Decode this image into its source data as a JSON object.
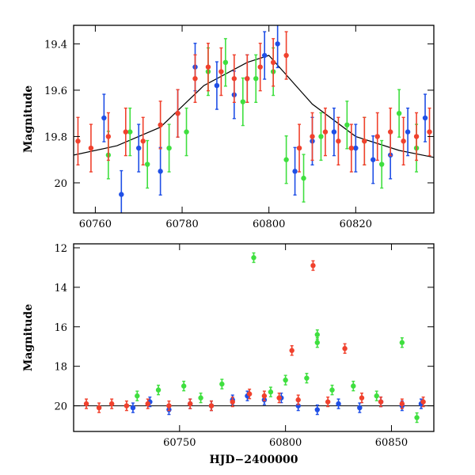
{
  "chart_data": [
    {
      "type": "scatter",
      "panel": "top",
      "title": "",
      "xlabel": "",
      "ylabel": "Magnitude",
      "xlim": [
        60755,
        60838
      ],
      "ylim": [
        20.13,
        19.32
      ],
      "y_inverted": true,
      "xticks": [
        60760,
        60780,
        60800,
        60820
      ],
      "yticks": [
        19.4,
        19.6,
        19.8,
        20
      ],
      "ytick_labels": [
        "19.4",
        "19.6",
        "19.8",
        "20"
      ],
      "grid": false,
      "series": [
        {
          "color": "#1f4fe6",
          "points": [
            [
              60762,
              19.72
            ],
            [
              60766,
              20.05
            ],
            [
              60770,
              19.85
            ],
            [
              60775,
              19.95
            ],
            [
              60779,
              19.7
            ],
            [
              60783,
              19.5
            ],
            [
              60788,
              19.58
            ],
            [
              60792,
              19.62
            ],
            [
              60795,
              19.55
            ],
            [
              60799,
              19.45
            ],
            [
              60802,
              19.4
            ],
            [
              60806,
              19.95
            ],
            [
              60810,
              19.82
            ],
            [
              60815,
              19.78
            ],
            [
              60820,
              19.85
            ],
            [
              60824,
              19.9
            ],
            [
              60828,
              19.88
            ],
            [
              60832,
              19.78
            ],
            [
              60836,
              19.72
            ]
          ]
        },
        {
          "color": "#3fdf3f",
          "points": [
            [
              60763,
              19.88
            ],
            [
              60768,
              19.78
            ],
            [
              60772,
              19.92
            ],
            [
              60777,
              19.85
            ],
            [
              60781,
              19.78
            ],
            [
              60786,
              19.52
            ],
            [
              60790,
              19.48
            ],
            [
              60794,
              19.65
            ],
            [
              60797,
              19.55
            ],
            [
              60801,
              19.52
            ],
            [
              60804,
              19.9
            ],
            [
              60808,
              19.98
            ],
            [
              60812,
              19.8
            ],
            [
              60818,
              19.75
            ],
            [
              60822,
              19.82
            ],
            [
              60826,
              19.92
            ],
            [
              60830,
              19.7
            ],
            [
              60834,
              19.85
            ]
          ]
        },
        {
          "color": "#f0412d",
          "points": [
            [
              60756,
              19.82
            ],
            [
              60759,
              19.85
            ],
            [
              60763,
              19.8
            ],
            [
              60767,
              19.78
            ],
            [
              60771,
              19.82
            ],
            [
              60775,
              19.75
            ],
            [
              60779,
              19.7
            ],
            [
              60783,
              19.55
            ],
            [
              60786,
              19.5
            ],
            [
              60789,
              19.52
            ],
            [
              60792,
              19.55
            ],
            [
              60795,
              19.55
            ],
            [
              60798,
              19.5
            ],
            [
              60801,
              19.48
            ],
            [
              60804,
              19.45
            ],
            [
              60807,
              19.85
            ],
            [
              60810,
              19.8
            ],
            [
              60813,
              19.78
            ],
            [
              60816,
              19.82
            ],
            [
              60819,
              19.85
            ],
            [
              60822,
              19.82
            ],
            [
              60825,
              19.8
            ],
            [
              60828,
              19.78
            ],
            [
              60831,
              19.82
            ],
            [
              60834,
              19.8
            ],
            [
              60837,
              19.78
            ]
          ]
        }
      ],
      "model_curve": {
        "color": "#000000",
        "x": [
          60755,
          60765,
          60775,
          60785,
          60795,
          60800,
          60810,
          60820,
          60830,
          60838
        ],
        "y": [
          19.88,
          19.84,
          19.76,
          19.58,
          19.48,
          19.45,
          19.66,
          19.8,
          19.86,
          19.89
        ]
      }
    },
    {
      "type": "scatter",
      "panel": "bottom",
      "title": "",
      "xlabel": "HJD−2400000",
      "ylabel": "Magnitude",
      "xlim": [
        60700,
        60870
      ],
      "ylim": [
        21.3,
        11.8
      ],
      "y_inverted": true,
      "xticks": [
        60750,
        60800,
        60850
      ],
      "yticks": [
        12,
        14,
        16,
        18,
        20
      ],
      "ytick_labels": [
        "12",
        "14",
        "16",
        "18",
        "20"
      ],
      "grid": false,
      "series": [
        {
          "color": "#1f4fe6",
          "points": [
            [
              60728,
              20.1
            ],
            [
              60736,
              19.8
            ],
            [
              60745,
              20.2
            ],
            [
              60755,
              19.9
            ],
            [
              60765,
              20.0
            ],
            [
              60775,
              19.7
            ],
            [
              60782,
              19.5
            ],
            [
              60790,
              19.7
            ],
            [
              60798,
              19.6
            ],
            [
              60806,
              20.0
            ],
            [
              60815,
              20.2
            ],
            [
              60825,
              19.9
            ],
            [
              60835,
              20.1
            ],
            [
              60845,
              19.8
            ],
            [
              60855,
              20.0
            ],
            [
              60864,
              19.9
            ]
          ]
        },
        {
          "color": "#3fdf3f",
          "points": [
            [
              60730,
              19.5
            ],
            [
              60740,
              19.2
            ],
            [
              60752,
              19.0
            ],
            [
              60760,
              19.6
            ],
            [
              60770,
              18.9
            ],
            [
              60785,
              12.5
            ],
            [
              60793,
              19.3
            ],
            [
              60800,
              18.7
            ],
            [
              60810,
              18.6
            ],
            [
              60815,
              16.4
            ],
            [
              60815,
              16.8
            ],
            [
              60822,
              19.2
            ],
            [
              60832,
              19.0
            ],
            [
              60843,
              19.5
            ],
            [
              60855,
              16.8
            ],
            [
              60862,
              20.6
            ]
          ]
        },
        {
          "color": "#f0412d",
          "points": [
            [
              60706,
              19.9
            ],
            [
              60712,
              20.1
            ],
            [
              60718,
              19.9
            ],
            [
              60725,
              20.0
            ],
            [
              60735,
              19.9
            ],
            [
              60745,
              20.0
            ],
            [
              60755,
              19.9
            ],
            [
              60765,
              20.0
            ],
            [
              60775,
              19.8
            ],
            [
              60783,
              19.4
            ],
            [
              60790,
              19.5
            ],
            [
              60797,
              19.6
            ],
            [
              60803,
              17.2
            ],
            [
              60806,
              19.7
            ],
            [
              60813,
              12.9
            ],
            [
              60820,
              19.8
            ],
            [
              60828,
              17.1
            ],
            [
              60836,
              19.6
            ],
            [
              60845,
              19.8
            ],
            [
              60855,
              19.9
            ],
            [
              60865,
              19.8
            ]
          ]
        }
      ],
      "reference_line": {
        "color": "#000000",
        "y": 20.0
      }
    }
  ]
}
